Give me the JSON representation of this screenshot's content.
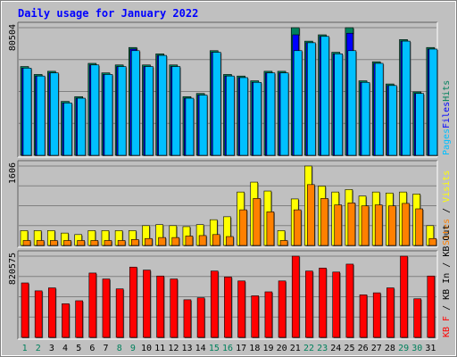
{
  "chart_data": {
    "type": "bar",
    "title": "Daily usage for January 2022",
    "categories": [
      "1",
      "2",
      "3",
      "4",
      "5",
      "6",
      "7",
      "8",
      "9",
      "10",
      "11",
      "12",
      "13",
      "14",
      "15",
      "16",
      "17",
      "18",
      "19",
      "20",
      "21",
      "22",
      "23",
      "24",
      "25",
      "26",
      "27",
      "28",
      "29",
      "30",
      "31"
    ],
    "weekend_days": [
      "1",
      "2",
      "8",
      "9",
      "15",
      "16",
      "22",
      "23",
      "29",
      "30"
    ],
    "panels": [
      {
        "id": "hits-files-pages",
        "max_label": "80504",
        "ymax": 80504,
        "side_labels": [
          "Pages",
          "Files",
          "Hits"
        ],
        "series": [
          {
            "name": "Hits",
            "color": "#00805c",
            "values": [
              56000,
              51000,
              53000,
              34000,
              37000,
              58000,
              52000,
              57000,
              68000,
              57000,
              64000,
              57000,
              37000,
              39000,
              66000,
              51000,
              50000,
              47000,
              53000,
              53000,
              80504,
              72000,
              76000,
              65000,
              80504,
              47000,
              59000,
              45000,
              73000,
              40000,
              68000
            ]
          },
          {
            "name": "Files",
            "color": "#0000ff",
            "values": [
              55000,
              50000,
              52000,
              33000,
              36000,
              57000,
              51000,
              56000,
              67000,
              56000,
              63000,
              56000,
              36000,
              38000,
              65000,
              50000,
              49000,
              46000,
              52000,
              52000,
              76000,
              71000,
              75000,
              64000,
              77000,
              46000,
              58000,
              44000,
              72000,
              39000,
              67000
            ]
          },
          {
            "name": "Pages",
            "color": "#00c0ff",
            "values": [
              55000,
              50000,
              52000,
              33000,
              36000,
              57000,
              51000,
              56000,
              66000,
              56000,
              63000,
              56000,
              36000,
              38000,
              65000,
              50000,
              49000,
              46000,
              52000,
              52000,
              66000,
              71000,
              75000,
              64000,
              66000,
              46000,
              58000,
              44000,
              72000,
              39000,
              67000
            ]
          }
        ]
      },
      {
        "id": "visits-sites",
        "max_label": "1606",
        "ymax": 1606,
        "side_labels": [
          "Sites",
          "/",
          "Visits"
        ],
        "series": [
          {
            "name": "Visits",
            "color": "#ffff00",
            "values": [
              300,
              300,
              300,
              250,
              220,
              300,
              300,
              300,
              300,
              400,
              420,
              400,
              380,
              420,
              520,
              580,
              1080,
              1280,
              1100,
              300,
              940,
              1606,
              1200,
              1080,
              1130,
              1000,
              1080,
              1060,
              1080,
              1040,
              400
            ]
          },
          {
            "name": "Sites",
            "color": "#ff8000",
            "values": [
              100,
              100,
              100,
              100,
              100,
              100,
              100,
              100,
              120,
              140,
              160,
              160,
              190,
              200,
              220,
              180,
              720,
              950,
              680,
              100,
              720,
              1230,
              950,
              820,
              860,
              800,
              820,
              800,
              850,
              740,
              140
            ]
          }
        ]
      },
      {
        "id": "kbytes",
        "max_label": "820575",
        "ymax": 820575,
        "side_labels": [
          "KB F",
          "/",
          "KB In",
          "/",
          "KB Out"
        ],
        "series": [
          {
            "name": "KB F",
            "color": "#ff0000",
            "values": [
              550000,
              470000,
              500000,
              340000,
              370000,
              650000,
              590000,
              490000,
              710000,
              680000,
              620000,
              590000,
              380000,
              400000,
              670000,
              610000,
              570000,
              420000,
              460000,
              570000,
              820575,
              670000,
              700000,
              660000,
              740000,
              430000,
              450000,
              500000,
              820575,
              390000,
              620000
            ]
          }
        ]
      }
    ]
  }
}
